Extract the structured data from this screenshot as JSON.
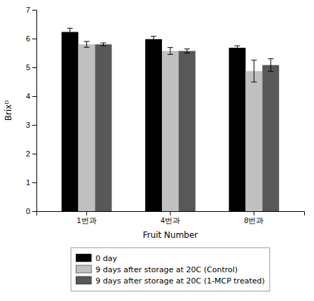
{
  "chart_data": {
    "type": "bar",
    "categories": [
      "1번과",
      "4번과",
      "8번과"
    ],
    "series": [
      {
        "name": "0 day",
        "color": "#000000",
        "values": [
          6.23,
          5.98,
          5.68
        ],
        "errors": [
          0.13,
          0.1,
          0.07
        ]
      },
      {
        "name": "9 days after storage at 20C (Control)",
        "color": "#c0c0c0",
        "values": [
          5.8,
          5.57,
          4.87
        ],
        "errors": [
          0.1,
          0.12,
          0.38
        ]
      },
      {
        "name": "9 days after storage at 20C (1-MCP treated)",
        "color": "#585858",
        "values": [
          5.8,
          5.57,
          5.08
        ],
        "errors": [
          0.05,
          0.07,
          0.22
        ]
      }
    ],
    "xlabel": "Fruit Number",
    "ylabel": "Brixᴰ",
    "ylim": [
      0,
      7
    ],
    "yticks": [
      0,
      1,
      2,
      3,
      4,
      5,
      6,
      7
    ],
    "grid": false,
    "legend": "bottom"
  }
}
